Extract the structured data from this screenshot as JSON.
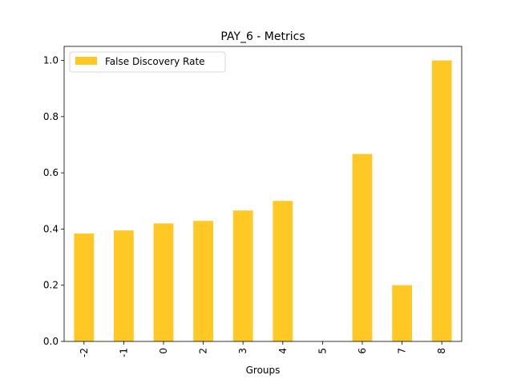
{
  "chart_data": {
    "type": "bar",
    "title": "PAY_6 - Metrics",
    "xlabel": "Groups",
    "ylabel": "",
    "categories": [
      "-2",
      "-1",
      "0",
      "2",
      "3",
      "4",
      "5",
      "6",
      "7",
      "8"
    ],
    "series": [
      {
        "name": "False Discovery Rate",
        "values": [
          0.384,
          0.395,
          0.42,
          0.429,
          0.466,
          0.5,
          0.0,
          0.667,
          0.2,
          1.0
        ],
        "color": "#ffc825"
      }
    ],
    "ylim": [
      0,
      1.05
    ],
    "yticks": [
      "0.0",
      "0.2",
      "0.4",
      "0.6",
      "0.8",
      "1.0"
    ],
    "grid": false,
    "legend": "top-left"
  }
}
